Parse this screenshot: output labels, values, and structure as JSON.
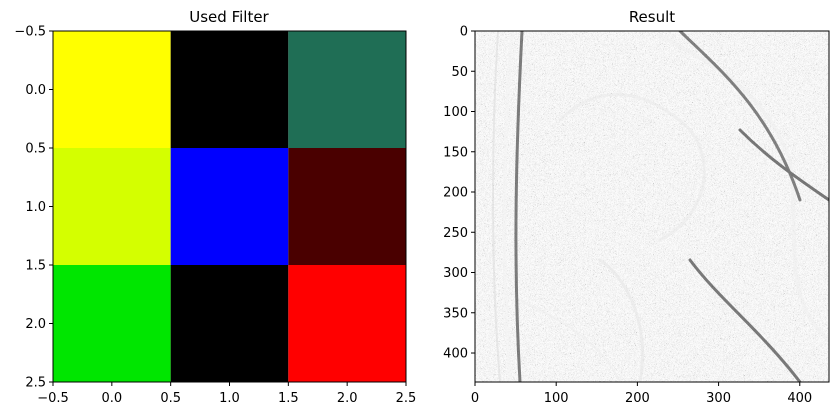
{
  "chart_data": [
    {
      "type": "heatmap",
      "title": "Used Filter",
      "xlabel": "",
      "ylabel": "",
      "xlim": [
        -0.5,
        2.5
      ],
      "ylim": [
        2.5,
        -0.5
      ],
      "x_ticks": [
        "-0.5",
        "0.0",
        "0.5",
        "1.0",
        "1.5",
        "2.0",
        "2.5"
      ],
      "y_ticks": [
        "-0.5",
        "0.0",
        "0.5",
        "1.0",
        "1.5",
        "2.0",
        "2.5"
      ],
      "x_tick_values": [
        -0.5,
        0,
        0.5,
        1,
        1.5,
        2,
        2.5
      ],
      "y_tick_values": [
        -0.5,
        0,
        0.5,
        1,
        1.5,
        2,
        2.5
      ],
      "cell_colors": [
        [
          "#ffff00",
          "#000000",
          "#1f6e55"
        ],
        [
          "#d4ff00",
          "#0000ff",
          "#4a0000"
        ],
        [
          "#00e600",
          "#000000",
          "#ff0000"
        ]
      ]
    },
    {
      "type": "heatmap",
      "title": "Result",
      "xlabel": "",
      "ylabel": "",
      "xlim": [
        0,
        436
      ],
      "ylim": [
        436,
        0
      ],
      "x_ticks": [
        "0",
        "100",
        "200",
        "300",
        "400"
      ],
      "x_tick_values": [
        0,
        100,
        200,
        300,
        400
      ],
      "y_ticks": [
        "0",
        "50",
        "100",
        "150",
        "200",
        "250",
        "300",
        "350",
        "400"
      ],
      "y_tick_values": [
        0,
        50,
        100,
        150,
        200,
        250,
        300,
        350,
        400
      ],
      "colormap": "gray"
    }
  ]
}
